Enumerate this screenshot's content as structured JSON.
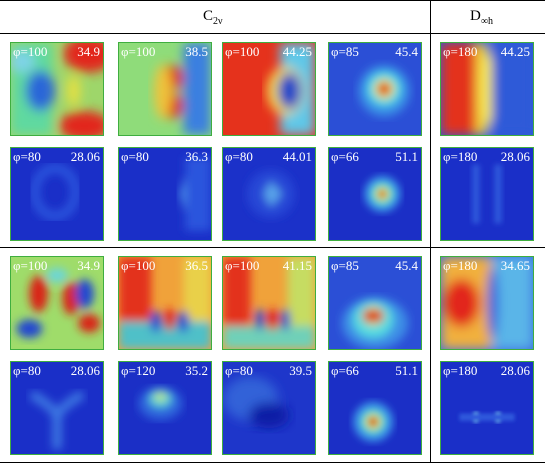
{
  "headers": {
    "c2v": {
      "main": "C",
      "sub": "2ν"
    },
    "dinf": {
      "main": "D",
      "sub": "∞h"
    }
  },
  "rows": [
    [
      {
        "phi": "φ=100",
        "value": "34.9",
        "pattern": "c2v-quadrant-warm"
      },
      {
        "phi": "φ=100",
        "value": "38.5",
        "pattern": "c2v-green-double-lobe"
      },
      {
        "phi": "φ=100",
        "value": "44.25",
        "pattern": "c2v-red-with-blue-hole"
      },
      {
        "phi": "φ=85",
        "value": "45.4",
        "pattern": "central-hotspot-cyan-halo"
      },
      {
        "phi": "φ=180",
        "value": "44.25",
        "pattern": "dinf-red-left-blue-right"
      }
    ],
    [
      {
        "phi": "φ=80",
        "value": "28.06",
        "pattern": "dim-blue-ring"
      },
      {
        "phi": "φ=80",
        "value": "36.3",
        "pattern": "dim-blue-right-wedge"
      },
      {
        "phi": "φ=80",
        "value": "44.01",
        "pattern": "dim-blue-center-cross"
      },
      {
        "phi": "φ=66",
        "value": "51.1",
        "pattern": "small-hotspot"
      },
      {
        "phi": "φ=180",
        "value": "28.06",
        "pattern": "dim-blue-dashes"
      }
    ],
    [
      {
        "phi": "φ=100",
        "value": "34.9",
        "pattern": "c2v-quadrant-cool"
      },
      {
        "phi": "φ=100",
        "value": "36.5",
        "pattern": "red-left-twin-hotspots"
      },
      {
        "phi": "φ=100",
        "value": "41.15",
        "pattern": "red-left-twin-hotspots-b"
      },
      {
        "phi": "φ=85",
        "value": "45.4",
        "pattern": "hotspot-lower-halo"
      },
      {
        "phi": "φ=180",
        "value": "34.65",
        "pattern": "dinf-orange-left"
      }
    ],
    [
      {
        "phi": "φ=80",
        "value": "28.06",
        "pattern": "dim-blue-y-shape"
      },
      {
        "phi": "φ=120",
        "value": "35.2",
        "pattern": "dim-blue-top-spot"
      },
      {
        "phi": "φ=80",
        "value": "39.5",
        "pattern": "dim-blue-dark-blob"
      },
      {
        "phi": "φ=66",
        "value": "51.1",
        "pattern": "small-hotspot-low"
      },
      {
        "phi": "φ=180",
        "value": "28.06",
        "pattern": "dim-blue-two-dots"
      }
    ]
  ]
}
